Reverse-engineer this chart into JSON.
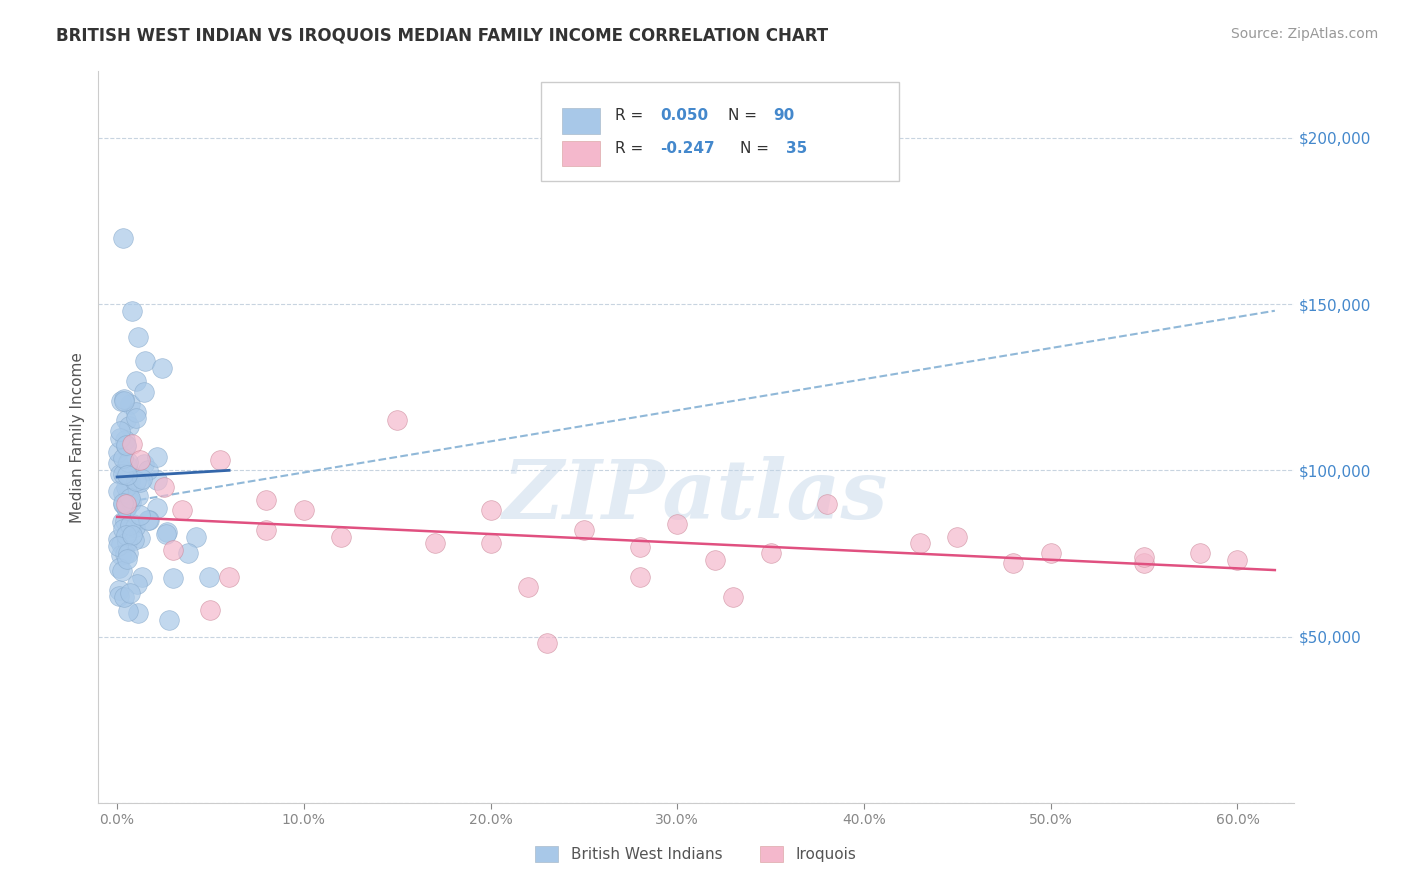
{
  "title": "BRITISH WEST INDIAN VS IROQUOIS MEDIAN FAMILY INCOME CORRELATION CHART",
  "source": "Source: ZipAtlas.com",
  "ylabel": "Median Family Income",
  "xlabel_ticks": [
    "0.0%",
    "10.0%",
    "20.0%",
    "30.0%",
    "40.0%",
    "50.0%",
    "60.0%"
  ],
  "xlabel_vals": [
    0.0,
    10.0,
    20.0,
    30.0,
    40.0,
    50.0,
    60.0
  ],
  "ytick_vals": [
    0,
    50000,
    100000,
    150000,
    200000
  ],
  "ytick_labels": [
    "",
    "$50,000",
    "$100,000",
    "$150,000",
    "$200,000"
  ],
  "ylim": [
    0,
    220000
  ],
  "xlim": [
    -1,
    63
  ],
  "watermark": "ZIPatlas",
  "blue_color": "#a8c8e8",
  "pink_color": "#f4b8cc",
  "blue_line_color": "#3366aa",
  "pink_line_color": "#e05080",
  "dashed_line_color": "#90b8d8",
  "title_fontsize": 12,
  "source_fontsize": 10,
  "axis_label_fontsize": 11,
  "tick_fontsize": 10,
  "watermark_fontsize": 60,
  "watermark_color": "#c0d4e8",
  "watermark_alpha": 0.45,
  "background_color": "#ffffff",
  "grid_color": "#c8d4e0",
  "right_tick_color": "#4488cc",
  "legend_number_color": "#4488cc",
  "bwi_trend_x0": 0,
  "bwi_trend_x1": 6,
  "bwi_trend_y0": 98000,
  "bwi_trend_y1": 100000,
  "iro_trend_x0": 0,
  "iro_trend_x1": 62,
  "iro_trend_y0": 86000,
  "iro_trend_y1": 70000,
  "dashed_x0": 0,
  "dashed_x1": 62,
  "dashed_y0": 90000,
  "dashed_y1": 148000,
  "bottom_legend_labels": [
    "British West Indians",
    "Iroquois"
  ]
}
